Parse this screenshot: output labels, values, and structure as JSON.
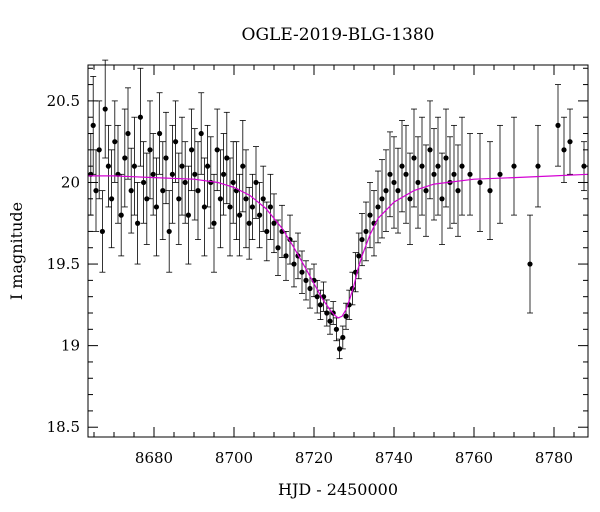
{
  "chart_data": {
    "type": "scatter",
    "title": "OGLE-2019-BLG-1380",
    "xlabel": "HJD - 2450000",
    "ylabel": "I magnitude",
    "xlim": [
      8663.5,
      8788.5
    ],
    "ylim": [
      20.72,
      18.44
    ],
    "y_inverted": true,
    "grid": false,
    "x_ticks": [
      8680,
      8700,
      8720,
      8740,
      8760,
      8780
    ],
    "x_tick_labels": [
      "8680",
      "8700",
      "8720",
      "8740",
      "8760",
      "8780"
    ],
    "y_ticks": [
      18.5,
      19,
      19.5,
      20,
      20.5
    ],
    "y_tick_labels": [
      "18.5",
      "19",
      "19.5",
      "20",
      "20.5"
    ],
    "colors": {
      "points": "#000000",
      "model": "#d400d4"
    },
    "series": [
      {
        "type": "scatter_errorbars",
        "x": [
          8664.2,
          8664.8,
          8665.5,
          8666.3,
          8667.1,
          8667.8,
          8668.6,
          8669.4,
          8670.2,
          8671.0,
          8671.8,
          8672.7,
          8673.5,
          8674.3,
          8675.1,
          8675.9,
          8676.6,
          8677.4,
          8678.2,
          8679.0,
          8679.8,
          8680.6,
          8681.4,
          8682.2,
          8683.0,
          8683.8,
          8684.6,
          8685.4,
          8686.2,
          8687.0,
          8687.8,
          8688.6,
          8689.4,
          8690.2,
          8691.0,
          8691.8,
          8692.6,
          8693.4,
          8694.2,
          8695.0,
          8695.8,
          8696.6,
          8697.4,
          8698.2,
          8699.0,
          8699.8,
          8700.6,
          8701.4,
          8702.2,
          8703.0,
          8703.8,
          8704.6,
          8705.5,
          8706.4,
          8707.3,
          8708.2,
          8709.1,
          8710.0,
          8711.0,
          8712.0,
          8713.0,
          8714.0,
          8715.0,
          8716.0,
          8717.0,
          8718.0,
          8719.0,
          8720.0,
          8720.8,
          8721.6,
          8722.4,
          8723.2,
          8724.0,
          8724.8,
          8725.6,
          8726.4,
          8727.2,
          8728.0,
          8728.8,
          8729.6,
          8730.4,
          8731.2,
          8732.0,
          8733.0,
          8734.0,
          8735.0,
          8736.0,
          8737.0,
          8738.0,
          8739.0,
          8740.0,
          8741.0,
          8742.0,
          8743.0,
          8744.0,
          8745.0,
          8746.0,
          8747.0,
          8748.0,
          8749.0,
          8750.0,
          8751.0,
          8752.0,
          8753.0,
          8754.0,
          8755.0,
          8756.0,
          8757.0,
          8759.0,
          8761.5,
          8764.0,
          8766.5,
          8770.0,
          8774.0,
          8776.0,
          8781.0,
          8782.5,
          8784.0,
          8787.5
        ],
        "y": [
          20.05,
          20.35,
          19.95,
          20.2,
          19.7,
          20.45,
          20.1,
          19.9,
          20.25,
          20.05,
          19.8,
          20.15,
          20.3,
          19.95,
          20.1,
          19.75,
          20.4,
          20.0,
          19.9,
          20.2,
          20.05,
          19.85,
          20.3,
          19.95,
          20.15,
          19.7,
          20.05,
          20.25,
          19.9,
          20.1,
          20.0,
          19.8,
          20.2,
          20.05,
          19.95,
          20.3,
          19.85,
          20.1,
          20.0,
          19.75,
          20.2,
          19.9,
          20.05,
          20.15,
          19.85,
          20.0,
          19.95,
          19.8,
          20.1,
          19.9,
          19.75,
          19.85,
          20.0,
          19.8,
          19.9,
          19.7,
          19.85,
          19.75,
          19.6,
          19.7,
          19.55,
          19.65,
          19.5,
          19.55,
          19.45,
          19.4,
          19.35,
          19.4,
          19.3,
          19.25,
          19.3,
          19.2,
          19.15,
          19.2,
          19.1,
          18.98,
          19.05,
          19.18,
          19.25,
          19.35,
          19.45,
          19.55,
          19.65,
          19.7,
          19.8,
          19.75,
          19.85,
          19.9,
          19.95,
          20.05,
          20.0,
          19.95,
          20.1,
          20.05,
          19.9,
          20.15,
          20.0,
          20.1,
          19.95,
          20.2,
          20.05,
          20.1,
          19.9,
          20.15,
          20.0,
          20.05,
          19.95,
          20.1,
          20.05,
          20.0,
          19.95,
          20.05,
          20.1,
          19.5,
          20.1,
          20.35,
          20.2,
          20.25,
          20.1
        ],
        "yerr": [
          0.25,
          0.3,
          0.25,
          0.3,
          0.25,
          0.3,
          0.25,
          0.3,
          0.25,
          0.3,
          0.25,
          0.3,
          0.28,
          0.26,
          0.3,
          0.25,
          0.3,
          0.25,
          0.28,
          0.3,
          0.25,
          0.3,
          0.25,
          0.3,
          0.28,
          0.25,
          0.3,
          0.25,
          0.28,
          0.3,
          0.25,
          0.3,
          0.25,
          0.28,
          0.3,
          0.25,
          0.3,
          0.25,
          0.28,
          0.3,
          0.25,
          0.3,
          0.25,
          0.28,
          0.3,
          0.25,
          0.3,
          0.25,
          0.28,
          0.3,
          0.22,
          0.2,
          0.22,
          0.2,
          0.2,
          0.18,
          0.2,
          0.18,
          0.17,
          0.16,
          0.15,
          0.15,
          0.14,
          0.14,
          0.13,
          0.12,
          0.12,
          0.1,
          0.1,
          0.09,
          0.09,
          0.08,
          0.08,
          0.07,
          0.07,
          0.06,
          0.07,
          0.08,
          0.09,
          0.1,
          0.12,
          0.14,
          0.16,
          0.18,
          0.2,
          0.2,
          0.22,
          0.24,
          0.25,
          0.26,
          0.28,
          0.26,
          0.28,
          0.3,
          0.28,
          0.3,
          0.28,
          0.3,
          0.28,
          0.3,
          0.28,
          0.3,
          0.28,
          0.3,
          0.28,
          0.3,
          0.28,
          0.3,
          0.25,
          0.3,
          0.3,
          0.3,
          0.3,
          0.3,
          0.25,
          0.25,
          0.2,
          0.2,
          0.15
        ]
      },
      {
        "type": "line",
        "name": "",
        "x": [
          8663.5,
          8670,
          8680,
          8690,
          8696,
          8700,
          8704,
          8708,
          8712,
          8715,
          8718,
          8720,
          8722,
          8724,
          8725,
          8726,
          8727,
          8728,
          8729,
          8730,
          8731,
          8732,
          8734,
          8736,
          8740,
          8745,
          8750,
          8760,
          8770,
          8780,
          8788.5
        ],
        "y": [
          20.04,
          20.04,
          20.03,
          20.02,
          20.0,
          19.97,
          19.92,
          19.84,
          19.72,
          19.6,
          19.47,
          19.38,
          19.29,
          19.22,
          19.19,
          19.17,
          19.18,
          19.22,
          19.29,
          19.37,
          19.47,
          19.55,
          19.68,
          19.78,
          19.88,
          19.95,
          19.99,
          20.02,
          20.03,
          20.04,
          20.05
        ]
      }
    ]
  }
}
